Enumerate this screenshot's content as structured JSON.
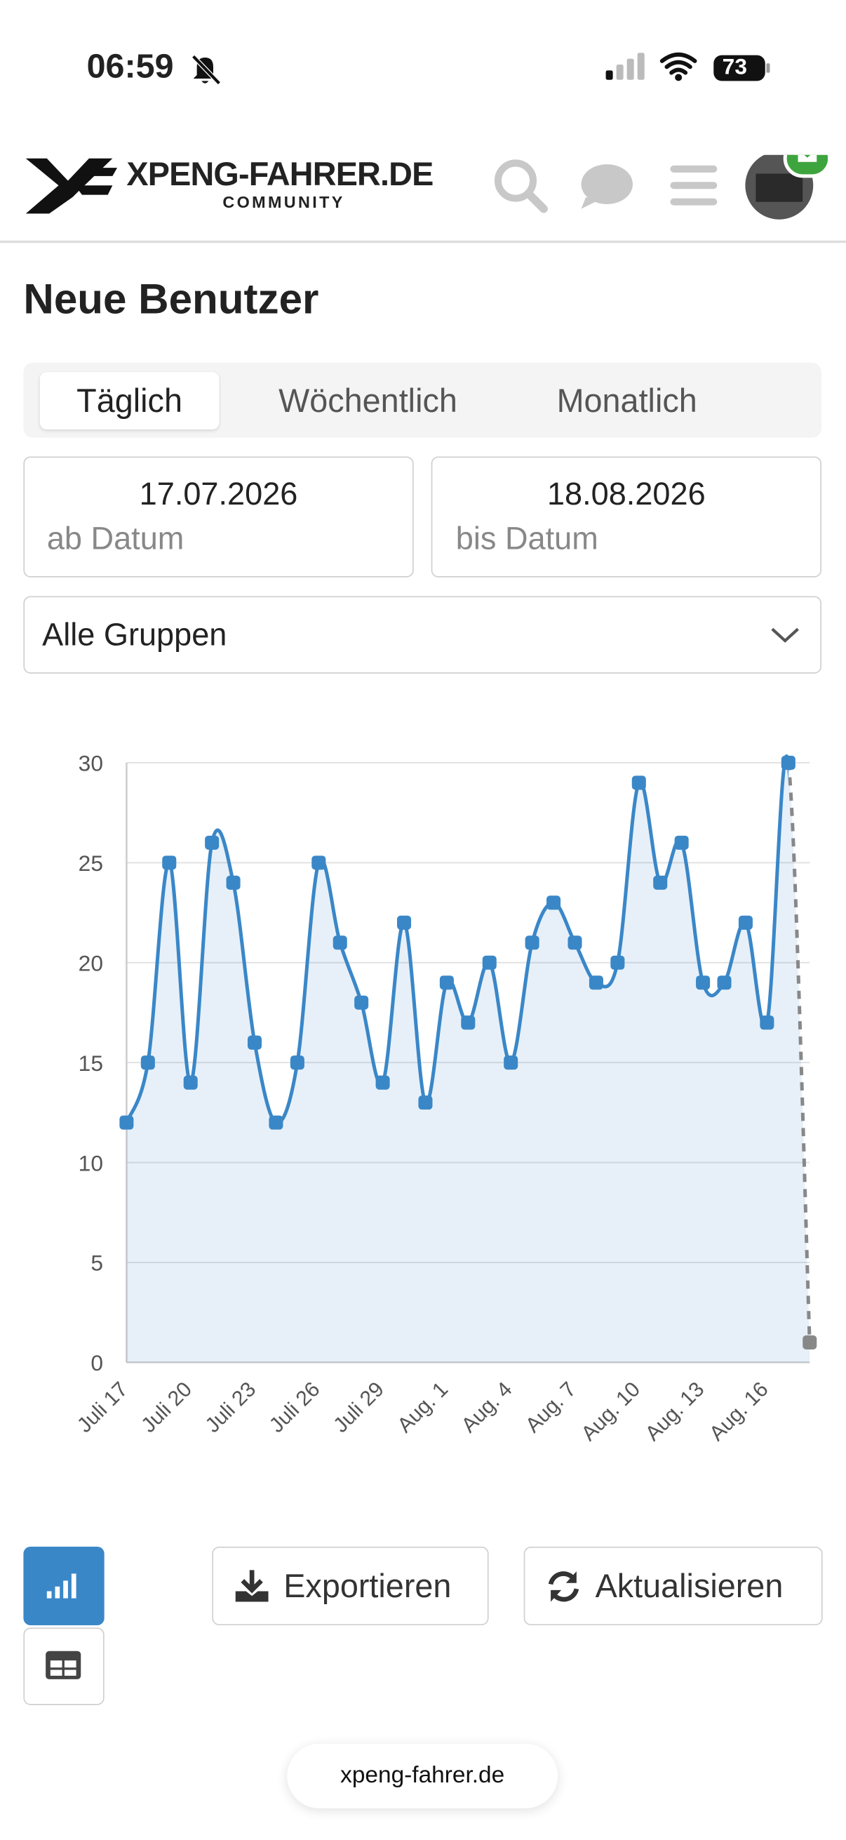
{
  "status": {
    "time": "06:59",
    "battery": "73"
  },
  "header": {
    "logo": "XPENG-FAHRER.DE",
    "logo_sub": "COMMUNITY"
  },
  "page": {
    "title": "Neue Benutzer",
    "tabs": [
      "Täglich",
      "Wöchentlich",
      "Monatlich"
    ],
    "from": {
      "date": "17.07.2026",
      "label": "ab Datum"
    },
    "to": {
      "date": "18.08.2026",
      "label": "bis Datum"
    },
    "select": "Alle Gruppen",
    "buttons": {
      "export": "Exportieren",
      "refresh": "Aktualisieren"
    }
  },
  "url": "xpeng-fahrer.de",
  "chart_data": {
    "type": "line",
    "area": true,
    "grid": true,
    "partial_last": true,
    "categories": [
      "Juli 17",
      null,
      null,
      "Juli 20",
      null,
      null,
      "Juli 23",
      null,
      null,
      "Juli 26",
      null,
      null,
      "Juli 29",
      null,
      null,
      "Aug. 1",
      null,
      null,
      "Aug. 4",
      null,
      null,
      "Aug. 7",
      null,
      null,
      "Aug. 10",
      null,
      null,
      "Aug. 13",
      null,
      null,
      "Aug. 16",
      null,
      null
    ],
    "series": [
      {
        "color": "#3a87c8",
        "values": [
          12,
          15,
          25,
          14,
          26,
          24,
          16,
          12,
          15,
          25,
          21,
          18,
          14,
          22,
          13,
          19,
          17,
          20,
          15,
          21,
          23,
          21,
          19,
          20,
          29,
          24,
          26,
          19,
          19,
          22,
          17,
          30,
          1
        ]
      }
    ],
    "ylim": [
      0,
      30
    ],
    "yticks": [
      0,
      5,
      10,
      15,
      20,
      25,
      30
    ]
  }
}
